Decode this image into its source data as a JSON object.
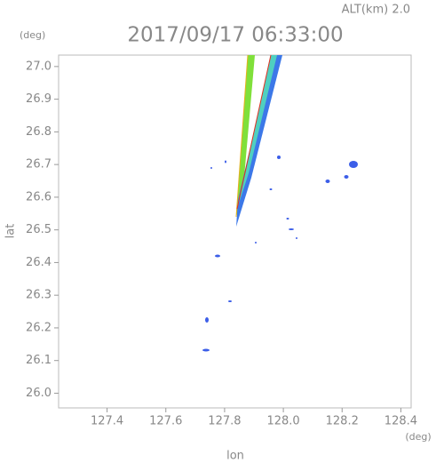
{
  "chart_data": {
    "type": "radar-map",
    "title": "2017/09/17 06:33:00",
    "altitude_label": "ALT(km)  2.0",
    "x_label": "lon",
    "y_label": "lat",
    "x_unit": "(deg)",
    "y_unit": "(deg)",
    "xlim": [
      127.235,
      128.435
    ],
    "ylim": [
      25.955,
      27.035
    ],
    "xticks": [
      127.4,
      127.6,
      127.8,
      {
        "value": 128.0,
        "label": "128.0"
      },
      128.2,
      128.4
    ],
    "yticks": [
      {
        "value": 26.0,
        "label": "26.0"
      },
      26.1,
      26.2,
      26.3,
      26.4,
      26.5,
      26.6,
      26.7,
      26.8,
      26.9,
      {
        "value": 27.0,
        "label": "27.0"
      }
    ]
  }
}
